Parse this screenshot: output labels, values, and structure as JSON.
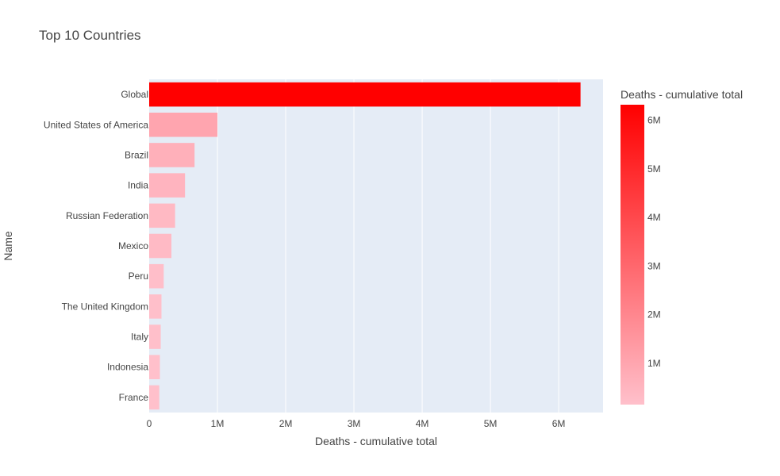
{
  "chart_data": {
    "type": "bar",
    "orientation": "horizontal",
    "title": "Top 10 Countries",
    "xlabel": "Deaths - cumulative total",
    "ylabel": "Name",
    "categories": [
      "Global",
      "United States of America",
      "Brazil",
      "India",
      "Russian Federation",
      "Mexico",
      "Peru",
      "The United Kingdom",
      "Italy",
      "Indonesia",
      "France"
    ],
    "values": [
      6320000,
      1000000,
      665000,
      525000,
      380000,
      326000,
      213000,
      180000,
      169000,
      157000,
      148000
    ],
    "xlim": [
      0,
      6650000
    ],
    "xticks": [
      {
        "value": 0,
        "label": "0"
      },
      {
        "value": 1000000,
        "label": "1M"
      },
      {
        "value": 2000000,
        "label": "2M"
      },
      {
        "value": 3000000,
        "label": "3M"
      },
      {
        "value": 4000000,
        "label": "4M"
      },
      {
        "value": 5000000,
        "label": "5M"
      },
      {
        "value": 6000000,
        "label": "6M"
      }
    ],
    "grid": true,
    "colorbar": {
      "title": "Deaths - cumulative total",
      "min": 148000,
      "max": 6320000,
      "color_low": "#ffc0cb",
      "color_high": "#ff0000",
      "ticks": [
        {
          "value": 1000000,
          "label": "1M"
        },
        {
          "value": 2000000,
          "label": "2M"
        },
        {
          "value": 3000000,
          "label": "3M"
        },
        {
          "value": 4000000,
          "label": "4M"
        },
        {
          "value": 5000000,
          "label": "5M"
        },
        {
          "value": 6000000,
          "label": "6M"
        }
      ]
    },
    "plot_background": "#e5ecf6"
  }
}
